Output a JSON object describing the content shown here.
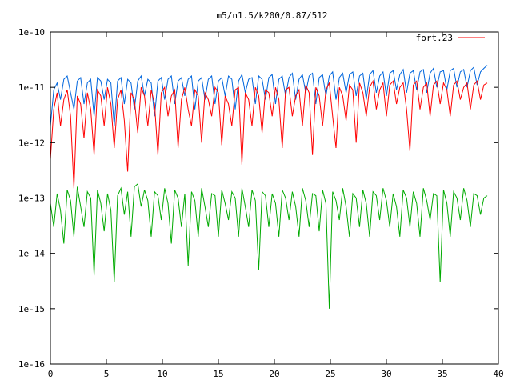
{
  "chart_data": {
    "type": "line",
    "title": "m5/n1.5/k200/0.87/512",
    "xlabel": "",
    "ylabel": "",
    "xlim": [
      0,
      40
    ],
    "ylim": [
      1e-16,
      1e-10
    ],
    "yscale": "log",
    "xticks": [
      "0",
      "5",
      "10",
      "15",
      "20",
      "25",
      "30",
      "35",
      "40"
    ],
    "yticks": [
      "1e-16",
      "1e-15",
      "1e-14",
      "1e-13",
      "1e-12",
      "1e-11",
      "1e-10"
    ],
    "legend_position": "top-right",
    "grid": false,
    "series": [
      {
        "name": "fort.23",
        "color": "#ff0000",
        "x": [
          0.0,
          0.3,
          0.6,
          0.9,
          1.2,
          1.5,
          1.8,
          2.1,
          2.4,
          2.7,
          3.0,
          3.3,
          3.6,
          3.9,
          4.2,
          4.5,
          4.8,
          5.1,
          5.4,
          5.7,
          6.0,
          6.3,
          6.6,
          6.9,
          7.2,
          7.5,
          7.8,
          8.1,
          8.4,
          8.7,
          9.0,
          9.3,
          9.6,
          9.9,
          10.2,
          10.5,
          10.8,
          11.1,
          11.4,
          11.7,
          12.0,
          12.3,
          12.6,
          12.9,
          13.2,
          13.5,
          13.8,
          14.1,
          14.4,
          14.7,
          15.0,
          15.3,
          15.6,
          15.9,
          16.2,
          16.5,
          16.8,
          17.1,
          17.4,
          17.7,
          18.0,
          18.3,
          18.6,
          18.9,
          19.2,
          19.5,
          19.8,
          20.1,
          20.4,
          20.7,
          21.0,
          21.3,
          21.6,
          21.9,
          22.2,
          22.5,
          22.8,
          23.1,
          23.4,
          23.7,
          24.0,
          24.3,
          24.6,
          24.9,
          25.2,
          25.5,
          25.8,
          26.1,
          26.4,
          26.7,
          27.0,
          27.3,
          27.6,
          27.9,
          28.2,
          28.5,
          28.8,
          29.1,
          29.4,
          29.7,
          30.0,
          30.3,
          30.6,
          30.9,
          31.2,
          31.5,
          31.8,
          32.1,
          32.4,
          32.7,
          33.0,
          33.3,
          33.6,
          33.9,
          34.2,
          34.5,
          34.8,
          35.1,
          35.4,
          35.7,
          36.0,
          36.3,
          36.6,
          36.9,
          37.2,
          37.5,
          37.8,
          38.1,
          38.4,
          38.7,
          39.0
        ],
        "y": [
          5e-13,
          4e-12,
          8e-12,
          2e-12,
          6e-12,
          9e-12,
          3e-12,
          1.5e-13,
          7e-12,
          5e-12,
          1.2e-12,
          8e-12,
          4e-12,
          6e-13,
          9e-12,
          7e-12,
          2e-12,
          1e-11,
          5e-12,
          8e-13,
          6e-12,
          9e-12,
          2.5e-12,
          3e-13,
          8e-12,
          6e-12,
          1.5e-12,
          1e-11,
          7e-12,
          2e-12,
          9e-12,
          5e-12,
          6e-13,
          8e-12,
          1e-11,
          3e-12,
          7e-12,
          9e-12,
          8e-13,
          6e-12,
          1e-11,
          4e-12,
          2e-12,
          9e-12,
          7e-12,
          1e-12,
          8e-12,
          6e-12,
          3e-12,
          1e-11,
          8e-12,
          9e-13,
          7e-12,
          5e-12,
          2e-12,
          9e-12,
          1e-11,
          4e-13,
          8e-12,
          6e-12,
          2e-12,
          1e-11,
          7e-12,
          1.5e-12,
          9e-12,
          8e-12,
          3e-12,
          1e-11,
          6e-12,
          8e-13,
          9e-12,
          1e-11,
          3e-12,
          7e-12,
          9e-12,
          2e-12,
          1.1e-11,
          8e-12,
          6e-13,
          1e-11,
          7e-12,
          2e-12,
          9e-12,
          1.2e-11,
          3e-12,
          8e-13,
          1e-11,
          7e-12,
          2.5e-12,
          1.1e-11,
          9e-12,
          1e-12,
          1.2e-11,
          8e-12,
          3e-12,
          1e-11,
          1.3e-11,
          4e-12,
          9e-12,
          1.2e-11,
          3e-12,
          1.1e-11,
          1.3e-11,
          5e-12,
          1e-11,
          1.2e-11,
          4e-12,
          7e-13,
          1.1e-11,
          1.3e-11,
          4e-12,
          1e-11,
          1.2e-11,
          3e-12,
          1.1e-11,
          1.3e-11,
          5e-12,
          1.2e-11,
          9e-12,
          3e-12,
          1.1e-11,
          1.3e-11,
          6e-12,
          1e-11,
          1.2e-11,
          4e-12,
          1.1e-11,
          1.3e-11,
          6e-12,
          1.1e-11,
          1.2e-11
        ]
      },
      {
        "name": "",
        "color": "#0066dd",
        "x": [
          0.0,
          0.3,
          0.6,
          0.9,
          1.2,
          1.5,
          1.8,
          2.1,
          2.4,
          2.7,
          3.0,
          3.3,
          3.6,
          3.9,
          4.2,
          4.5,
          4.8,
          5.1,
          5.4,
          5.7,
          6.0,
          6.3,
          6.6,
          6.9,
          7.2,
          7.5,
          7.8,
          8.1,
          8.4,
          8.7,
          9.0,
          9.3,
          9.6,
          9.9,
          10.2,
          10.5,
          10.8,
          11.1,
          11.4,
          11.7,
          12.0,
          12.3,
          12.6,
          12.9,
          13.2,
          13.5,
          13.8,
          14.1,
          14.4,
          14.7,
          15.0,
          15.3,
          15.6,
          15.9,
          16.2,
          16.5,
          16.8,
          17.1,
          17.4,
          17.7,
          18.0,
          18.3,
          18.6,
          18.9,
          19.2,
          19.5,
          19.8,
          20.1,
          20.4,
          20.7,
          21.0,
          21.3,
          21.6,
          21.9,
          22.2,
          22.5,
          22.8,
          23.1,
          23.4,
          23.7,
          24.0,
          24.3,
          24.6,
          24.9,
          25.2,
          25.5,
          25.8,
          26.1,
          26.4,
          26.7,
          27.0,
          27.3,
          27.6,
          27.9,
          28.2,
          28.5,
          28.8,
          29.1,
          29.4,
          29.7,
          30.0,
          30.3,
          30.6,
          30.9,
          31.2,
          31.5,
          31.8,
          32.1,
          32.4,
          32.7,
          33.0,
          33.3,
          33.6,
          33.9,
          34.2,
          34.5,
          34.8,
          35.1,
          35.4,
          35.7,
          36.0,
          36.3,
          36.6,
          36.9,
          37.2,
          37.5,
          37.8,
          38.1,
          38.4,
          38.7,
          39.0
        ],
        "y": [
          2e-12,
          9e-12,
          1.2e-11,
          6e-12,
          1.4e-11,
          1.6e-11,
          8e-12,
          4e-12,
          1.3e-11,
          1.5e-11,
          5e-12,
          1.2e-11,
          1.4e-11,
          3e-12,
          1.5e-11,
          1.3e-11,
          6e-12,
          1.4e-11,
          1.2e-11,
          2e-12,
          1.3e-11,
          1.5e-11,
          5e-12,
          1.4e-11,
          1.2e-11,
          4e-12,
          1.3e-11,
          1.6e-11,
          7e-12,
          1.4e-11,
          1.2e-11,
          3e-12,
          1.3e-11,
          1.5e-11,
          6e-12,
          1.4e-11,
          1.6e-11,
          5e-12,
          1.3e-11,
          1.5e-11,
          7e-12,
          1.4e-11,
          1.6e-11,
          4e-12,
          1.3e-11,
          1.5e-11,
          6e-12,
          1.4e-11,
          1.6e-11,
          5e-12,
          1.3e-11,
          1.5e-11,
          7e-12,
          1.6e-11,
          1.4e-11,
          4e-12,
          1.3e-11,
          1.7e-11,
          8e-12,
          1.4e-11,
          1.5e-11,
          5e-12,
          1.6e-11,
          1.4e-11,
          6e-12,
          1.5e-11,
          1.7e-11,
          5e-12,
          1.4e-11,
          1.6e-11,
          7e-12,
          1.5e-11,
          1.8e-11,
          6e-12,
          1.4e-11,
          1.7e-11,
          8e-12,
          1.6e-11,
          1.8e-11,
          5e-12,
          1.5e-11,
          1.7e-11,
          7e-12,
          1.6e-11,
          1.9e-11,
          6e-12,
          1.5e-11,
          1.8e-11,
          8e-12,
          1.7e-11,
          1.9e-11,
          7e-12,
          1.6e-11,
          1.8e-11,
          6e-12,
          1.7e-11,
          2e-11,
          8e-12,
          1.6e-11,
          1.9e-11,
          7e-12,
          1.8e-11,
          2e-11,
          9e-12,
          1.7e-11,
          2.1e-11,
          8e-12,
          1.8e-11,
          2e-11,
          9e-12,
          1.9e-11,
          2.1e-11,
          8e-12,
          1.8e-11,
          2.2e-11,
          1e-11,
          1.9e-11,
          2e-11,
          9e-12,
          2e-11,
          2.2e-11,
          1e-11,
          1.9e-11,
          2.1e-11,
          1e-11,
          2e-11,
          2.3e-11,
          1.1e-11,
          1.9e-11,
          2.2e-11,
          2.5e-11
        ]
      },
      {
        "name": "",
        "color": "#00aa00",
        "x": [
          0.0,
          0.3,
          0.6,
          0.9,
          1.2,
          1.5,
          1.8,
          2.1,
          2.4,
          2.7,
          3.0,
          3.3,
          3.6,
          3.9,
          4.2,
          4.5,
          4.8,
          5.1,
          5.4,
          5.7,
          6.0,
          6.3,
          6.6,
          6.9,
          7.2,
          7.5,
          7.8,
          8.1,
          8.4,
          8.7,
          9.0,
          9.3,
          9.6,
          9.9,
          10.2,
          10.5,
          10.8,
          11.1,
          11.4,
          11.7,
          12.0,
          12.3,
          12.6,
          12.9,
          13.2,
          13.5,
          13.8,
          14.1,
          14.4,
          14.7,
          15.0,
          15.3,
          15.6,
          15.9,
          16.2,
          16.5,
          16.8,
          17.1,
          17.4,
          17.7,
          18.0,
          18.3,
          18.6,
          18.9,
          19.2,
          19.5,
          19.8,
          20.1,
          20.4,
          20.7,
          21.0,
          21.3,
          21.6,
          21.9,
          22.2,
          22.5,
          22.8,
          23.1,
          23.4,
          23.7,
          24.0,
          24.3,
          24.6,
          24.9,
          25.2,
          25.5,
          25.8,
          26.1,
          26.4,
          26.7,
          27.0,
          27.3,
          27.6,
          27.9,
          28.2,
          28.5,
          28.8,
          29.1,
          29.4,
          29.7,
          30.0,
          30.3,
          30.6,
          30.9,
          31.2,
          31.5,
          31.8,
          32.1,
          32.4,
          32.7,
          33.0,
          33.3,
          33.6,
          33.9,
          34.2,
          34.5,
          34.8,
          35.1,
          35.4,
          35.7,
          36.0,
          36.3,
          36.6,
          36.9,
          37.2,
          37.5,
          37.8,
          38.1,
          38.4,
          38.7,
          39.0
        ],
        "y": [
          8e-14,
          3e-14,
          1.2e-13,
          6e-14,
          1.5e-14,
          1.4e-13,
          9e-14,
          2e-14,
          1.6e-13,
          7e-14,
          3e-14,
          1.3e-13,
          1e-13,
          4e-15,
          1.4e-13,
          8e-14,
          2.5e-14,
          1.2e-13,
          6e-14,
          3e-15,
          1.1e-13,
          1.5e-13,
          5e-14,
          1.3e-13,
          2e-14,
          1.6e-13,
          1.8e-13,
          7e-14,
          1.4e-13,
          9e-14,
          2e-14,
          1.3e-13,
          1.1e-13,
          4e-14,
          1.5e-13,
          8e-14,
          1.5e-14,
          1.4e-13,
          1e-13,
          3e-14,
          1.2e-13,
          6e-15,
          1.3e-13,
          9e-14,
          2e-14,
          1.5e-13,
          7e-14,
          3e-14,
          1.2e-13,
          1.1e-13,
          2e-14,
          1.4e-13,
          8e-14,
          4e-14,
          1.3e-13,
          1e-13,
          2e-14,
          1.5e-13,
          7e-14,
          3e-14,
          1.4e-13,
          9e-14,
          5e-15,
          1.3e-13,
          1.1e-13,
          3e-14,
          1.2e-13,
          8e-14,
          2e-14,
          1.4e-13,
          1e-13,
          4e-14,
          1.3e-13,
          7e-14,
          2e-14,
          1.5e-13,
          9e-14,
          3e-14,
          1.2e-13,
          1.1e-13,
          2.5e-14,
          1.4e-13,
          8e-14,
          1e-15,
          1.3e-13,
          9e-14,
          4e-14,
          1.5e-13,
          7e-14,
          2e-14,
          1.2e-13,
          1e-13,
          3e-14,
          1.4e-13,
          8e-14,
          2e-14,
          1.3e-13,
          1.1e-13,
          4e-14,
          1.5e-13,
          9e-14,
          3e-14,
          1.2e-13,
          7e-14,
          2e-14,
          1.4e-13,
          1e-13,
          3e-14,
          1.3e-13,
          8e-14,
          2e-14,
          1.5e-13,
          9e-14,
          4e-14,
          1.2e-13,
          1.1e-13,
          3e-15,
          1.4e-13,
          8e-14,
          2e-14,
          1.3e-13,
          1e-13,
          4e-14,
          1.5e-13,
          9e-14,
          3e-14,
          1.2e-13,
          1.1e-13,
          5e-14,
          1e-13,
          1.1e-13
        ]
      }
    ]
  }
}
